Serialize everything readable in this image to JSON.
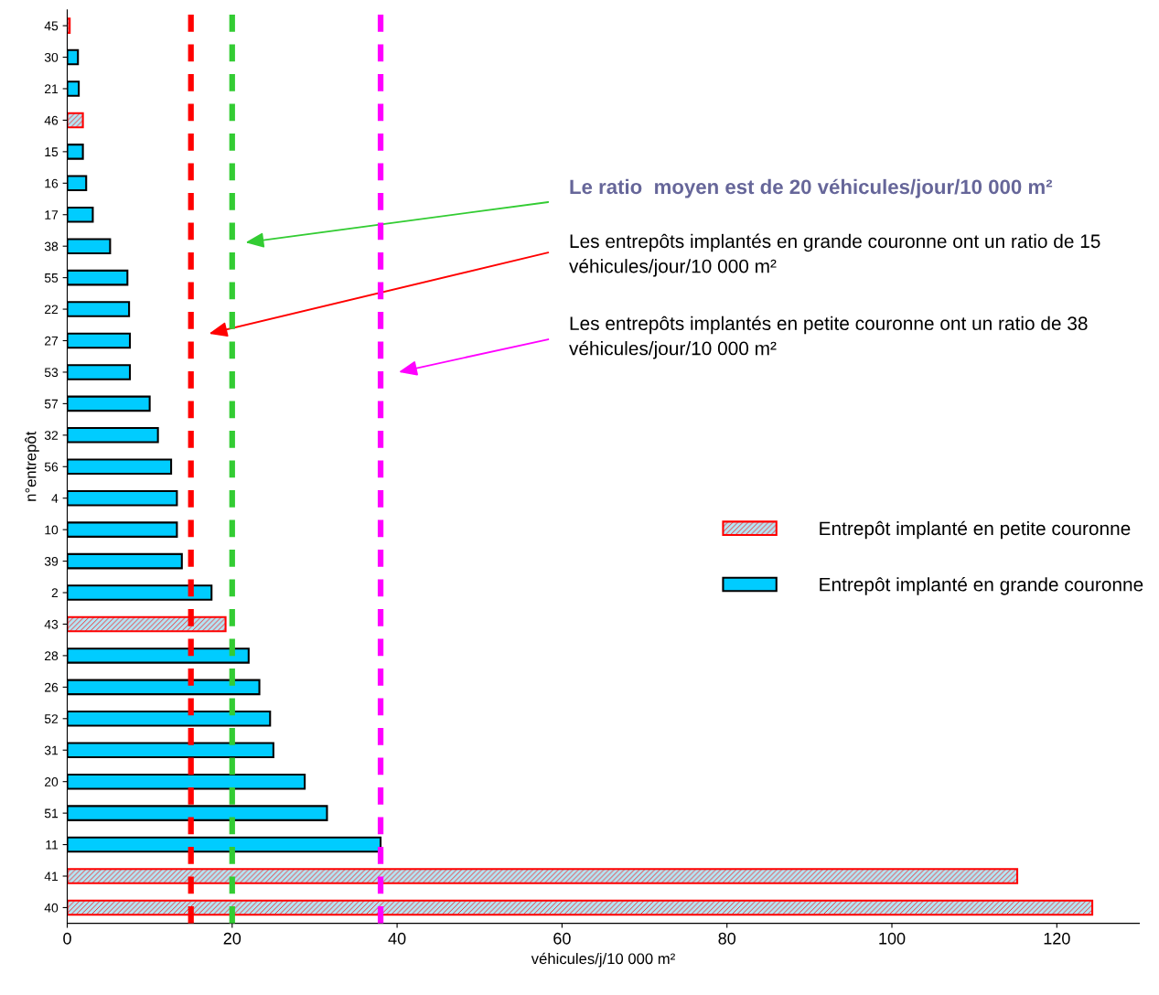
{
  "chart_data": {
    "type": "bar",
    "orientation": "horizontal",
    "xlabel": "véhicules/j/10 000 m²",
    "ylabel": "n°entrepôt",
    "categories": [
      "45",
      "30",
      "21",
      "46",
      "15",
      "16",
      "17",
      "38",
      "55",
      "22",
      "27",
      "53",
      "57",
      "32",
      "56",
      "4",
      "10",
      "39",
      "2",
      "43",
      "28",
      "26",
      "52",
      "31",
      "20",
      "51",
      "11",
      "41",
      "40"
    ],
    "series": [
      {
        "name": "Entrepôt implanté en petite couronne",
        "color": "#ff0000",
        "values": [
          0.3,
          null,
          null,
          1.9,
          null,
          null,
          null,
          null,
          null,
          null,
          null,
          null,
          null,
          null,
          null,
          null,
          null,
          null,
          null,
          19.2,
          null,
          null,
          null,
          null,
          null,
          null,
          null,
          115.2,
          124.3
        ]
      },
      {
        "name": "Entrepôt implanté en grande couronne",
        "color": "#00ccff",
        "values": [
          null,
          1.3,
          1.4,
          null,
          1.9,
          2.3,
          3.1,
          5.2,
          7.3,
          7.5,
          7.6,
          7.6,
          10.0,
          11.0,
          12.6,
          13.3,
          13.3,
          13.9,
          17.5,
          null,
          22.0,
          23.3,
          24.6,
          25.0,
          28.8,
          31.5,
          38.0,
          null,
          null
        ]
      }
    ],
    "xlim": [
      0,
      130
    ],
    "xticks": [
      0,
      20,
      40,
      60,
      80,
      100,
      120
    ],
    "ref_lines": [
      {
        "axis": "x",
        "value": 15,
        "color": "#ff0000",
        "line_style": "dashed"
      },
      {
        "axis": "x",
        "value": 20,
        "color": "#33cc33",
        "line_style": "dashed"
      },
      {
        "axis": "x",
        "value": 38,
        "color": "#ff00ff",
        "line_style": "dashed"
      }
    ],
    "annotations": [
      "Le ratio  moyen est de 20 véhicules/jour/10 000 m²",
      "Les entrepôts implantés en grande couronne ont un ratio de 15 véhicules/jour/10 000 m²",
      "Les entrepôts implantés en petite couronne ont un ratio de 38 véhicules/jour/10 000 m²"
    ],
    "legend": "right",
    "grid": false
  }
}
